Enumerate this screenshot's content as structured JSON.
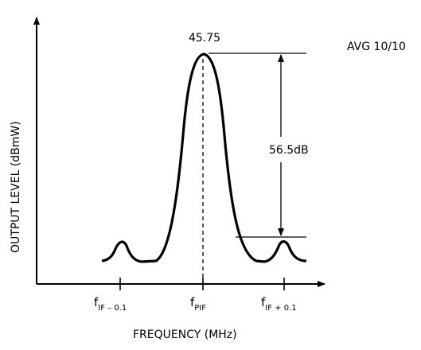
{
  "figure": {
    "peak_value": "45.75",
    "avg_label": "AVG 10/10",
    "difference_label": "56.5dB",
    "y_axis_label": "OUTPUT  LEVEL   (dBmW)",
    "x_axis_label": "FREQUENCY    (MHz)",
    "ticks": [
      {
        "main": "f",
        "sub": "IF – 0.1"
      },
      {
        "main": "f",
        "sub": "PIF"
      },
      {
        "main": "f",
        "sub": "IF + 0.1"
      }
    ]
  }
}
